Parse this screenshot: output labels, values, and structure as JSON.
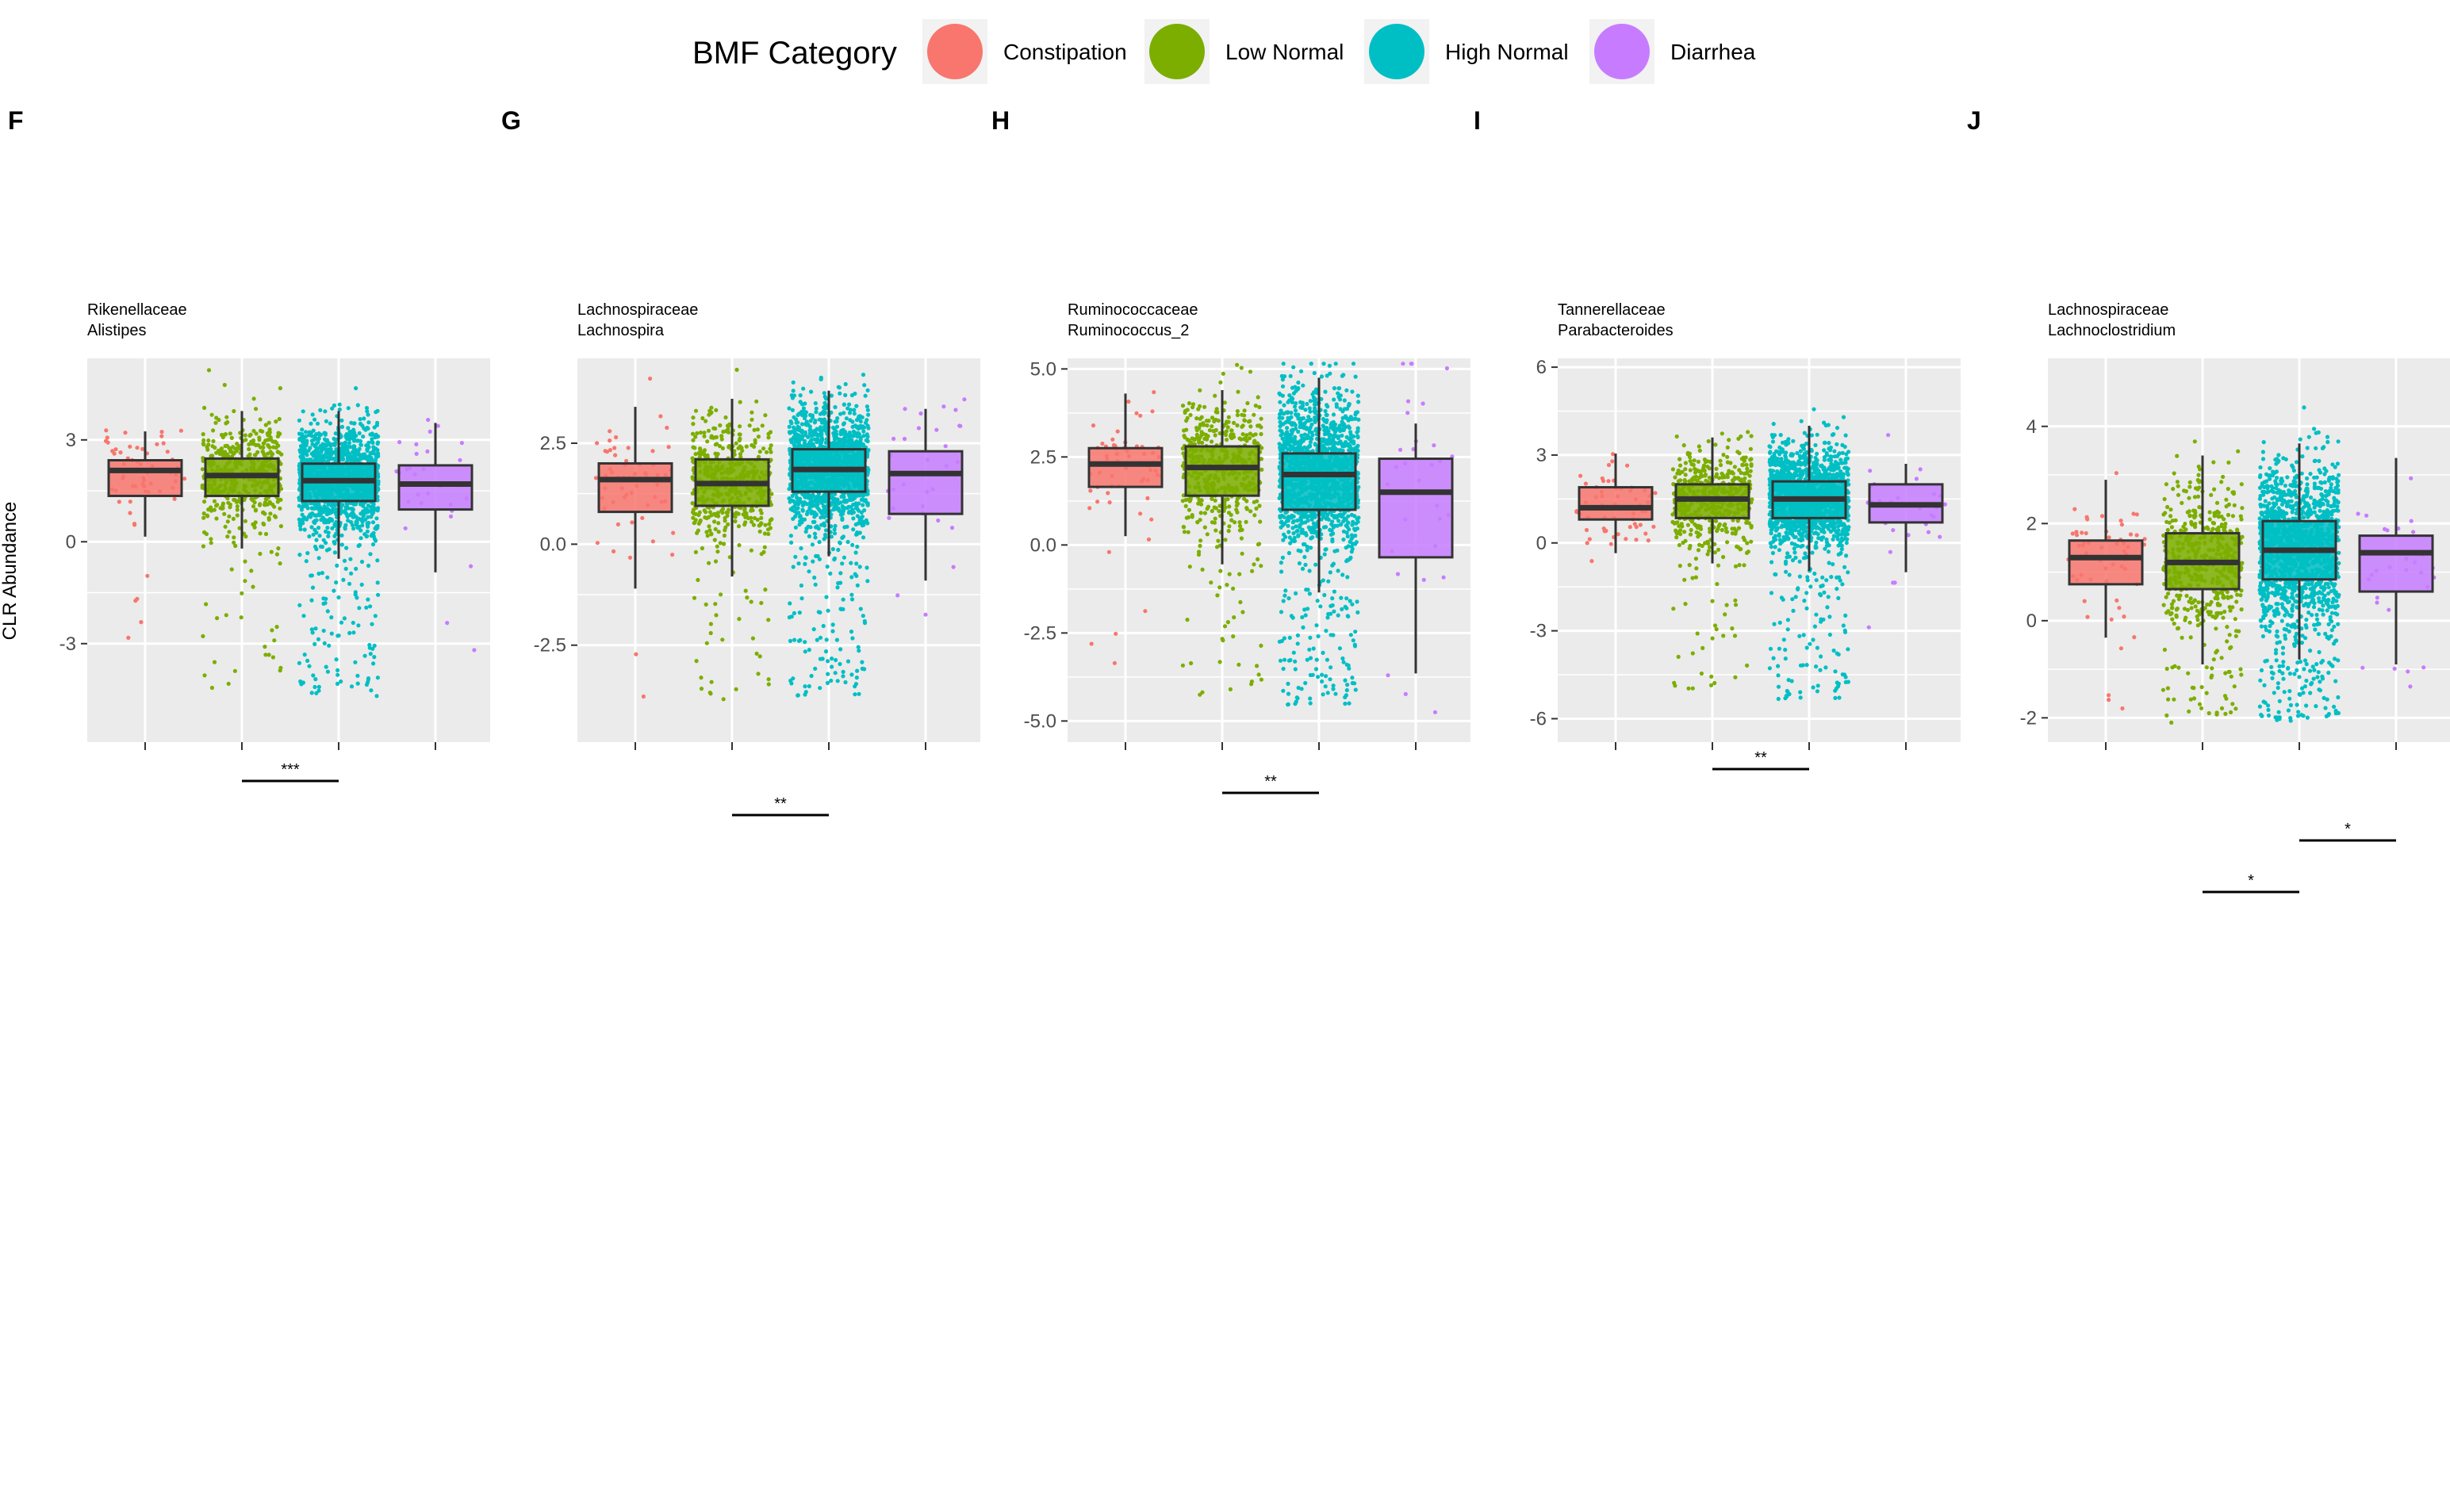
{
  "legend": {
    "title": "BMF Category",
    "items": [
      {
        "label": "Constipation",
        "color": "#F8766D"
      },
      {
        "label": "Low Normal",
        "color": "#7CAE00"
      },
      {
        "label": "High Normal",
        "color": "#00BFC4"
      },
      {
        "label": "Diarrhea",
        "color": "#C77CFF"
      }
    ]
  },
  "ylabel": "CLR Abundance",
  "colors": {
    "panel_bg": "#EBEBEB",
    "grid": "#FFFFFF",
    "box_line": "#333333"
  },
  "chart_data": [
    {
      "type": "box",
      "panel": "F",
      "family": "Rikenellaceae",
      "genus": "Alistipes",
      "ylim": [
        -5.9,
        5.4
      ],
      "yticks": [
        -3,
        0,
        3
      ],
      "ytick_labels": [
        "-3",
        "0",
        "3"
      ],
      "groups": [
        {
          "name": "Constipation",
          "q1": 1.35,
          "median": 2.1,
          "q3": 2.4,
          "whisker_low": 0.15,
          "whisker_high": 3.25,
          "n": 60
        },
        {
          "name": "Low Normal",
          "q1": 1.35,
          "median": 1.95,
          "q3": 2.45,
          "whisker_low": -0.2,
          "whisker_high": 3.85,
          "n": 520
        },
        {
          "name": "High Normal",
          "q1": 1.2,
          "median": 1.8,
          "q3": 2.3,
          "whisker_low": -0.5,
          "whisker_high": 3.85,
          "n": 1500
        },
        {
          "name": "Diarrhea",
          "q1": 0.95,
          "median": 1.7,
          "q3": 2.25,
          "whisker_low": -0.9,
          "whisker_high": 3.5,
          "n": 30
        }
      ],
      "significance": [
        {
          "label": "***",
          "from": 1,
          "to": 2,
          "tier": 0
        }
      ]
    },
    {
      "type": "box",
      "panel": "G",
      "family": "Lachnospiraceae",
      "genus": "Lachnospira",
      "ylim": [
        -4.9,
        4.6
      ],
      "yticks": [
        -2.5,
        0,
        2.5
      ],
      "ytick_labels": [
        "-2.5",
        "0.0",
        "2.5"
      ],
      "groups": [
        {
          "name": "Constipation",
          "q1": 0.8,
          "median": 1.6,
          "q3": 2.0,
          "whisker_low": -1.1,
          "whisker_high": 3.4,
          "n": 60
        },
        {
          "name": "Low Normal",
          "q1": 0.95,
          "median": 1.5,
          "q3": 2.1,
          "whisker_low": -0.8,
          "whisker_high": 3.6,
          "n": 520
        },
        {
          "name": "High Normal",
          "q1": 1.3,
          "median": 1.85,
          "q3": 2.35,
          "whisker_low": -0.3,
          "whisker_high": 3.8,
          "n": 1500
        },
        {
          "name": "Diarrhea",
          "q1": 0.75,
          "median": 1.75,
          "q3": 2.3,
          "whisker_low": -0.9,
          "whisker_high": 3.35,
          "n": 30
        }
      ],
      "significance": [
        {
          "label": "**",
          "from": 1,
          "to": 2,
          "tier": 0
        }
      ]
    },
    {
      "type": "box",
      "panel": "H",
      "family": "Ruminococcaceae",
      "genus": "Ruminococcus_2",
      "ylim": [
        -5.6,
        5.3
      ],
      "yticks": [
        -5,
        -2.5,
        0,
        2.5,
        5
      ],
      "ytick_labels": [
        "-5.0",
        "-2.5",
        "0.0",
        "2.5",
        "5.0"
      ],
      "groups": [
        {
          "name": "Constipation",
          "q1": 1.65,
          "median": 2.3,
          "q3": 2.75,
          "whisker_low": 0.25,
          "whisker_high": 4.3,
          "n": 60
        },
        {
          "name": "Low Normal",
          "q1": 1.4,
          "median": 2.2,
          "q3": 2.8,
          "whisker_low": -0.55,
          "whisker_high": 4.4,
          "n": 520
        },
        {
          "name": "High Normal",
          "q1": 1.0,
          "median": 2.0,
          "q3": 2.6,
          "whisker_low": -1.35,
          "whisker_high": 4.75,
          "n": 1500
        },
        {
          "name": "Diarrhea",
          "q1": -0.35,
          "median": 1.5,
          "q3": 2.45,
          "whisker_low": -3.65,
          "whisker_high": 3.45,
          "n": 30
        }
      ],
      "significance": [
        {
          "label": "**",
          "from": 1,
          "to": 2,
          "tier": 0
        }
      ]
    },
    {
      "type": "box",
      "panel": "I",
      "family": "Tannerellaceae",
      "genus": "Parabacteroides",
      "ylim": [
        -6.8,
        6.3
      ],
      "yticks": [
        -6,
        -3,
        0,
        3,
        6
      ],
      "ytick_labels": [
        "-6",
        "-3",
        "0",
        "3",
        "6"
      ],
      "groups": [
        {
          "name": "Constipation",
          "q1": 0.8,
          "median": 1.2,
          "q3": 1.9,
          "whisker_low": -0.35,
          "whisker_high": 3.05,
          "n": 60
        },
        {
          "name": "Low Normal",
          "q1": 0.85,
          "median": 1.5,
          "q3": 2.0,
          "whisker_low": -0.7,
          "whisker_high": 3.6,
          "n": 520
        },
        {
          "name": "High Normal",
          "q1": 0.85,
          "median": 1.5,
          "q3": 2.1,
          "whisker_low": -0.95,
          "whisker_high": 4.0,
          "n": 1500
        },
        {
          "name": "Diarrhea",
          "q1": 0.7,
          "median": 1.3,
          "q3": 2.0,
          "whisker_low": -1.0,
          "whisker_high": 2.7,
          "n": 30
        }
      ],
      "significance": [
        {
          "label": "**",
          "from": 1,
          "to": 2,
          "tier": 0
        }
      ]
    },
    {
      "type": "box",
      "panel": "J",
      "family": "Lachnospiraceae",
      "genus": "Lachnoclostridium",
      "ylim": [
        -2.5,
        5.4
      ],
      "yticks": [
        -2,
        0,
        2,
        4
      ],
      "ytick_labels": [
        "-2",
        "0",
        "2",
        "4"
      ],
      "groups": [
        {
          "name": "Constipation",
          "q1": 0.75,
          "median": 1.3,
          "q3": 1.65,
          "whisker_low": -0.35,
          "whisker_high": 2.9,
          "n": 60
        },
        {
          "name": "Low Normal",
          "q1": 0.65,
          "median": 1.2,
          "q3": 1.8,
          "whisker_low": -0.9,
          "whisker_high": 3.4,
          "n": 520
        },
        {
          "name": "High Normal",
          "q1": 0.85,
          "median": 1.45,
          "q3": 2.05,
          "whisker_low": -0.8,
          "whisker_high": 3.65,
          "n": 1500
        },
        {
          "name": "Diarrhea",
          "q1": 0.6,
          "median": 1.4,
          "q3": 1.75,
          "whisker_low": -0.9,
          "whisker_high": 3.35,
          "n": 30
        }
      ],
      "significance": [
        {
          "label": "*",
          "from": 2,
          "to": 3,
          "tier": 0
        },
        {
          "label": "*",
          "from": 1,
          "to": 2,
          "tier": 1
        }
      ]
    }
  ]
}
